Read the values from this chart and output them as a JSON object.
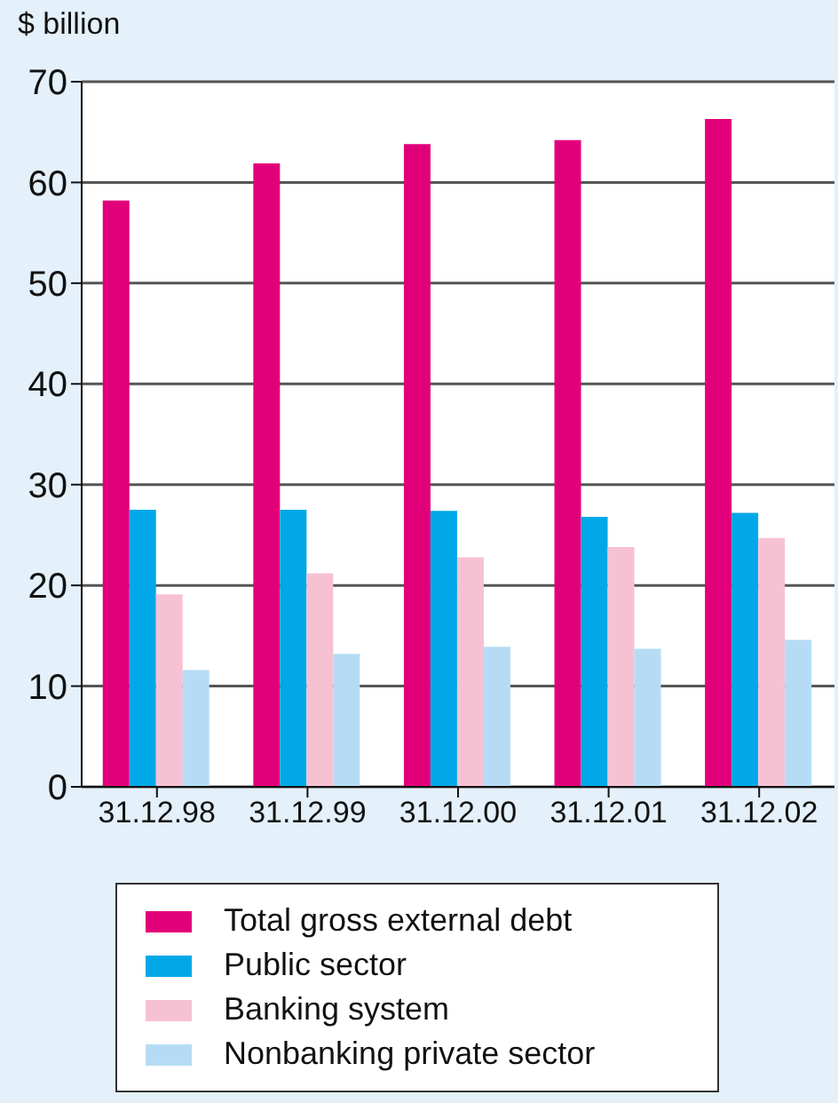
{
  "chart_data": {
    "type": "bar",
    "ylabel": "$ billion",
    "categories": [
      "31.12.98",
      "31.12.99",
      "31.12.00",
      "31.12.01",
      "31.12.02"
    ],
    "series": [
      {
        "name": "Total gross external debt",
        "color": "#e2007a",
        "values": [
          58.2,
          61.9,
          63.8,
          64.2,
          66.3
        ]
      },
      {
        "name": "Public sector",
        "color": "#00a8e8",
        "values": [
          27.5,
          27.5,
          27.4,
          26.8,
          27.2
        ]
      },
      {
        "name": "Banking system",
        "color": "#f7c1d4",
        "values": [
          19.1,
          21.2,
          22.8,
          23.8,
          24.7
        ]
      },
      {
        "name": "Nonbanking private sector",
        "color": "#b6dcf5",
        "values": [
          11.6,
          13.2,
          13.9,
          13.7,
          14.6
        ]
      }
    ],
    "ylim": [
      0,
      70
    ],
    "yticks": [
      0,
      10,
      20,
      30,
      40,
      50,
      60,
      70
    ],
    "grid": "y",
    "legend": "bottom"
  }
}
